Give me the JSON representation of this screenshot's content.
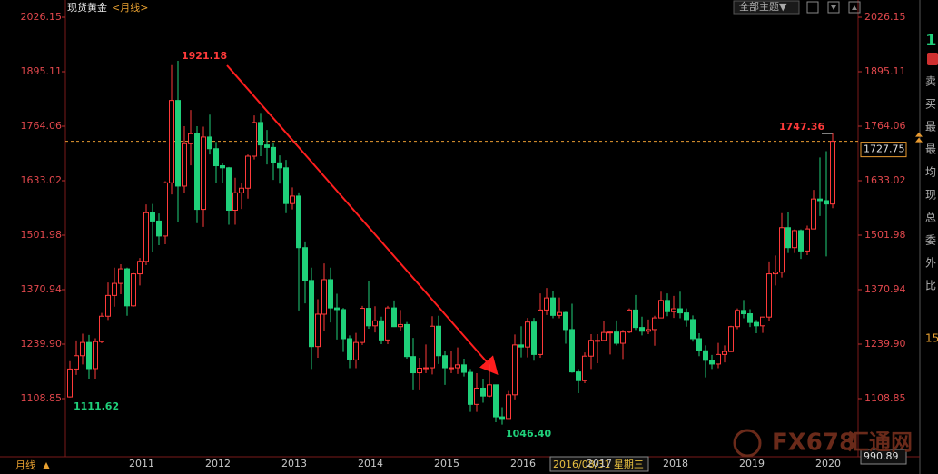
{
  "chart_data": {
    "type": "candlestick",
    "title": "现货黄金",
    "subtitle": "<月线>",
    "period_label": "月线",
    "theme_button": "全部主题▼",
    "cursor_date": "2016/08/31 星期三",
    "watermark": [
      "FX678",
      "汇通网"
    ],
    "annotations": [
      "1921.18",
      "1111.62",
      "1046.40",
      "1747.36"
    ],
    "current_price": 1727.75,
    "up_color": "#ff3a3a",
    "down_color": "#1fd07a",
    "price_line_color": "#e89a30",
    "ylim": [
      990.89,
      2026.15
    ],
    "yticks": [
      {
        "value": 1108.85,
        "label": "1108.85"
      },
      {
        "value": 1239.9,
        "label": "1239.90"
      },
      1370.94,
      1501.98,
      1633.02,
      1764.06,
      1895.11,
      2026.15
    ],
    "categories": [
      null,
      null,
      null,
      null,
      null,
      null,
      null,
      null,
      null,
      "2011",
      null,
      null,
      null,
      null,
      null,
      null,
      null,
      null,
      null,
      null,
      null,
      "2012",
      null,
      null,
      null,
      null,
      null,
      null,
      null,
      null,
      null,
      null,
      null,
      "2013",
      null,
      null,
      null,
      null,
      null,
      null,
      null,
      null,
      null,
      null,
      null,
      "2014",
      null,
      null,
      null,
      null,
      null,
      null,
      null,
      null,
      null,
      null,
      null,
      "2015",
      null,
      null,
      null,
      null,
      null,
      null,
      null,
      null,
      null,
      null,
      null,
      "2016",
      null,
      null,
      null,
      null,
      null,
      null,
      null,
      null,
      null,
      null,
      null,
      "2017",
      null,
      null,
      null,
      null,
      null,
      null,
      null,
      null,
      null,
      null,
      null,
      "2018",
      null,
      null,
      null,
      null,
      null,
      null,
      null,
      null,
      null,
      null,
      null,
      "2019",
      null,
      null,
      null,
      null,
      null,
      null,
      null,
      null,
      null,
      null,
      null,
      "2020",
      null,
      null,
      null
    ],
    "open": [
      1113,
      1180,
      1212,
      1244,
      1181,
      1246,
      1307,
      1357,
      1386,
      1421,
      1332,
      1409,
      1439,
      1556,
      1536,
      1500,
      1628,
      1826,
      1620,
      1722,
      1746,
      1564,
      1738,
      1710,
      1669,
      1664,
      1562,
      1604,
      1615,
      1692,
      1773,
      1719,
      1713,
      1676,
      1664,
      1578,
      1596,
      1472,
      1393,
      1234,
      1312,
      1395,
      1327,
      1323,
      1253,
      1202,
      1244,
      1326,
      1284,
      1296,
      1250,
      1327,
      1282,
      1287,
      1210,
      1171,
      1182,
      1183,
      1283,
      1212,
      1183,
      1183,
      1190,
      1172,
      1095,
      1134,
      1115,
      1142,
      1065,
      1061,
      1118,
      1238,
      1233,
      1293,
      1215,
      1322,
      1351,
      1309,
      1316,
      1275,
      1173,
      1152,
      1211,
      1249,
      1249,
      1268,
      1269,
      1242,
      1269,
      1322,
      1280,
      1271,
      1275,
      1303,
      1345,
      1318,
      1325,
      1315,
      1299,
      1253,
      1224,
      1201,
      1192,
      1215,
      1222,
      1282,
      1321,
      1313,
      1292,
      1284,
      1305,
      1409,
      1413,
      1520,
      1472,
      1513,
      1464,
      1517,
      1589,
      1585,
      1577
    ],
    "high": [
      1199,
      1249,
      1265,
      1262,
      1254,
      1315,
      1388,
      1424,
      1432,
      1424,
      1411,
      1447,
      1576,
      1577,
      1554,
      1632,
      1911,
      1921.18,
      1764,
      1803,
      1764,
      1763,
      1792,
      1726,
      1676,
      1666,
      1640,
      1628,
      1696,
      1790,
      1796,
      1755,
      1723,
      1694,
      1683,
      1617,
      1605,
      1487,
      1424,
      1348,
      1434,
      1424,
      1361,
      1327,
      1261,
      1267,
      1332,
      1392,
      1331,
      1306,
      1332,
      1345,
      1322,
      1293,
      1255,
      1207,
      1239,
      1307,
      1308,
      1223,
      1224,
      1232,
      1205,
      1180,
      1170,
      1157,
      1191,
      1142,
      1088,
      1127,
      1263,
      1283,
      1303,
      1303,
      1362,
      1375,
      1367,
      1352,
      1318,
      1337,
      1180,
      1220,
      1264,
      1264,
      1295,
      1270,
      1297,
      1274,
      1326,
      1358,
      1306,
      1299,
      1308,
      1366,
      1362,
      1356,
      1366,
      1326,
      1309,
      1266,
      1237,
      1214,
      1243,
      1237,
      1284,
      1326,
      1346,
      1324,
      1298,
      1306,
      1439,
      1453,
      1555,
      1557,
      1516,
      1516,
      1525,
      1611,
      1689,
      1704,
      1747.36
    ],
    "low": [
      1111.62,
      1166,
      1191,
      1157,
      1157,
      1242,
      1298,
      1330,
      1360,
      1308,
      1330,
      1381,
      1430,
      1462,
      1478,
      1480,
      1600,
      1534,
      1604,
      1670,
      1531,
      1522,
      1696,
      1628,
      1627,
      1527,
      1527,
      1565,
      1590,
      1684,
      1692,
      1672,
      1635,
      1626,
      1555,
      1564,
      1321,
      1338,
      1180,
      1207,
      1271,
      1292,
      1251,
      1221,
      1182,
      1182,
      1238,
      1277,
      1268,
      1240,
      1240,
      1281,
      1272,
      1205,
      1131,
      1131,
      1170,
      1167,
      1192,
      1142,
      1170,
      1168,
      1162,
      1077,
      1077,
      1099,
      1112,
      1052,
      1046.4,
      1061,
      1107,
      1208,
      1208,
      1200,
      1207,
      1310,
      1302,
      1302,
      1241,
      1171,
      1122,
      1146,
      1180,
      1194,
      1249,
      1215,
      1237,
      1204,
      1266,
      1274,
      1261,
      1264,
      1236,
      1302,
      1307,
      1303,
      1302,
      1282,
      1246,
      1211,
      1160,
      1180,
      1182,
      1196,
      1221,
      1276,
      1302,
      1281,
      1266,
      1267,
      1295,
      1381,
      1400,
      1459,
      1459,
      1445,
      1454,
      1517,
      1548,
      1451,
      1567
    ],
    "close": [
      1180,
      1212,
      1244,
      1181,
      1246,
      1307,
      1357,
      1386,
      1421,
      1332,
      1409,
      1439,
      1556,
      1536,
      1500,
      1628,
      1826,
      1620,
      1722,
      1746,
      1564,
      1738,
      1710,
      1669,
      1664,
      1562,
      1604,
      1615,
      1692,
      1773,
      1719,
      1713,
      1676,
      1664,
      1578,
      1596,
      1472,
      1393,
      1234,
      1312,
      1395,
      1327,
      1323,
      1253,
      1202,
      1244,
      1326,
      1284,
      1296,
      1250,
      1327,
      1282,
      1287,
      1210,
      1171,
      1182,
      1183,
      1283,
      1212,
      1183,
      1183,
      1190,
      1172,
      1095,
      1134,
      1115,
      1142,
      1065,
      1061,
      1118,
      1238,
      1233,
      1293,
      1215,
      1322,
      1351,
      1309,
      1316,
      1275,
      1173,
      1152,
      1211,
      1249,
      1249,
      1268,
      1269,
      1242,
      1269,
      1322,
      1280,
      1271,
      1275,
      1303,
      1345,
      1318,
      1325,
      1315,
      1299,
      1253,
      1224,
      1201,
      1192,
      1215,
      1222,
      1282,
      1321,
      1313,
      1292,
      1284,
      1305,
      1409,
      1413,
      1520,
      1472,
      1513,
      1464,
      1517,
      1589,
      1585,
      1577,
      1727.75
    ]
  },
  "side_panel": {
    "labels": [
      "1",
      "卖",
      "买",
      "最",
      "最",
      "均",
      "现",
      "总",
      "委",
      "外",
      "比",
      "15"
    ]
  }
}
